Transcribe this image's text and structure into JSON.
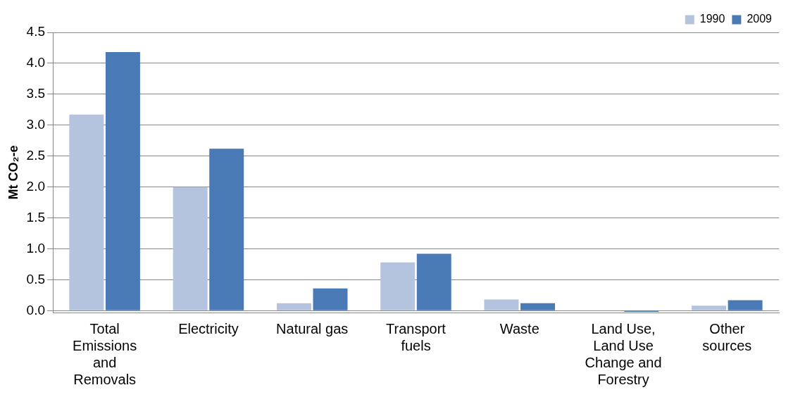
{
  "chart_data": {
    "type": "bar",
    "ylabel": "Mt CO₂-e",
    "categories": [
      "Total Emissions and Removals",
      "Electricity",
      "Natural gas",
      "Transport fuels",
      "Waste",
      "Land Use, Land Use Change and Forestry",
      "Other sources"
    ],
    "series": [
      {
        "name": "1990",
        "color": "#b4c3de",
        "values": [
          3.17,
          2.0,
          0.12,
          0.78,
          0.18,
          0.0,
          0.08
        ]
      },
      {
        "name": "2009",
        "color": "#4a7ab5",
        "values": [
          4.18,
          2.62,
          0.36,
          0.92,
          0.12,
          -0.02,
          0.17
        ]
      }
    ],
    "ylim": [
      -0.03,
      4.5
    ],
    "yticks": [
      {
        "value": 0,
        "label": "0.0"
      },
      0.5,
      {
        "value": 1,
        "label": "1.0"
      },
      1.5,
      {
        "value": 2,
        "label": "2.0"
      },
      2.5,
      {
        "value": 3,
        "label": "3.0"
      },
      3.5,
      {
        "value": 4,
        "label": "4.0"
      },
      4.5
    ],
    "grid": "y",
    "legend": "top right"
  }
}
